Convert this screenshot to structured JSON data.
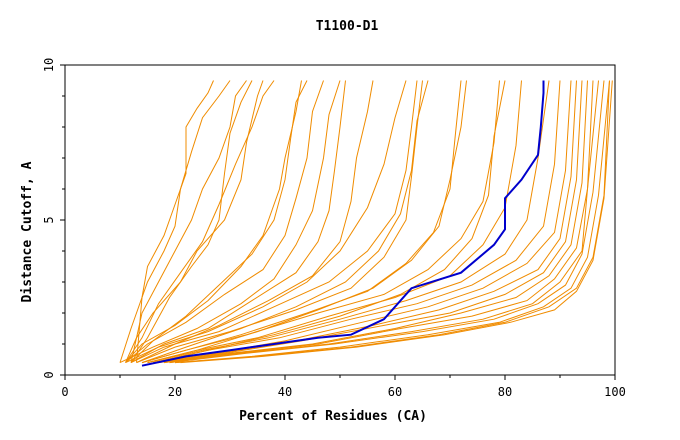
{
  "chart_data": {
    "type": "line",
    "title": "T1100-D1",
    "xlabel": "Percent of Residues (CA)",
    "ylabel": "Distance Cutoff, A",
    "xlim": [
      0,
      100
    ],
    "ylim": [
      0,
      10
    ],
    "xticks": [
      0,
      20,
      40,
      60,
      80,
      100
    ],
    "yticks": [
      0,
      5,
      10
    ],
    "grid": false,
    "colors": {
      "models": "#f08c00",
      "highlight": "#0000cc"
    },
    "highlight_series": {
      "x": [
        14,
        22,
        30,
        38,
        46,
        52,
        58,
        63,
        72,
        78,
        80,
        80,
        83,
        86,
        86.5,
        87,
        87
      ],
      "y": [
        0.3,
        0.6,
        0.8,
        1.0,
        1.2,
        1.3,
        1.8,
        2.8,
        3.3,
        4.2,
        4.7,
        5.7,
        6.3,
        7.1,
        8.0,
        9.1,
        9.5
      ]
    },
    "model_series": [
      {
        "x": [
          13,
          14,
          15,
          18,
          20,
          22,
          22,
          24,
          26,
          27
        ],
        "y": [
          0.4,
          2.5,
          3.5,
          4.5,
          5.5,
          6.5,
          8.0,
          8.6,
          9.1,
          9.5
        ]
      },
      {
        "x": [
          12,
          14,
          17,
          20,
          23,
          25,
          28,
          30,
          31,
          33
        ],
        "y": [
          0.4,
          2.0,
          3.0,
          4.0,
          5.0,
          6.0,
          7.0,
          8.0,
          9.0,
          9.5
        ]
      },
      {
        "x": [
          11,
          13,
          16,
          21,
          24,
          29,
          32,
          33,
          35,
          36
        ],
        "y": [
          0.4,
          1.2,
          2.0,
          3.0,
          4.0,
          5.0,
          6.3,
          7.5,
          9.0,
          9.5
        ]
      },
      {
        "x": [
          12,
          15,
          19,
          23,
          26,
          28,
          29,
          30,
          32,
          34
        ],
        "y": [
          0.4,
          1.2,
          2.5,
          3.5,
          4.2,
          5.0,
          6.5,
          7.8,
          8.8,
          9.5
        ]
      },
      {
        "x": [
          11,
          14,
          20,
          26,
          32,
          36,
          39,
          40,
          42,
          43
        ],
        "y": [
          0.4,
          1.0,
          1.6,
          2.4,
          3.5,
          4.5,
          6.0,
          7.0,
          8.5,
          9.5
        ]
      },
      {
        "x": [
          11,
          15,
          22,
          29,
          36,
          40,
          42,
          44,
          45,
          47
        ],
        "y": [
          0.4,
          1.0,
          1.7,
          2.6,
          3.4,
          4.5,
          5.7,
          7.0,
          8.5,
          9.5
        ]
      },
      {
        "x": [
          10,
          16,
          24,
          32,
          38,
          42,
          45,
          47,
          48,
          50
        ],
        "y": [
          0.4,
          0.9,
          1.5,
          2.3,
          3.1,
          4.2,
          5.3,
          7.0,
          8.4,
          9.5
        ]
      },
      {
        "x": [
          12,
          18,
          26,
          34,
          42,
          46,
          48,
          49,
          50,
          51
        ],
        "y": [
          0.4,
          1.0,
          1.5,
          2.4,
          3.3,
          4.3,
          5.3,
          6.6,
          8.0,
          9.5
        ]
      },
      {
        "x": [
          11,
          17,
          26,
          36,
          44,
          50,
          55,
          58,
          60,
          62
        ],
        "y": [
          0.4,
          0.9,
          1.4,
          2.2,
          3.0,
          4.0,
          5.4,
          6.8,
          8.3,
          9.5
        ]
      },
      {
        "x": [
          12,
          18,
          28,
          38,
          48,
          55,
          60,
          62,
          63,
          64
        ],
        "y": [
          0.4,
          0.9,
          1.4,
          2.2,
          3.0,
          4.0,
          5.2,
          6.6,
          8.0,
          9.5
        ]
      },
      {
        "x": [
          13,
          20,
          30,
          42,
          52,
          58,
          62,
          63,
          64,
          65
        ],
        "y": [
          0.4,
          0.9,
          1.4,
          2.1,
          2.8,
          3.8,
          5.0,
          6.4,
          8.0,
          9.5
        ]
      },
      {
        "x": [
          14,
          22,
          32,
          44,
          55,
          62,
          67,
          70,
          71,
          72
        ],
        "y": [
          0.4,
          0.8,
          1.3,
          2.0,
          2.7,
          3.6,
          4.6,
          6.0,
          7.8,
          9.5
        ]
      },
      {
        "x": [
          14,
          22,
          33,
          46,
          58,
          66,
          72,
          76,
          78,
          79
        ],
        "y": [
          0.4,
          0.8,
          1.3,
          2.0,
          2.6,
          3.4,
          4.4,
          5.6,
          7.5,
          9.5
        ]
      },
      {
        "x": [
          15,
          24,
          35,
          48,
          60,
          70,
          76,
          80,
          82,
          83
        ],
        "y": [
          0.4,
          0.8,
          1.2,
          1.9,
          2.5,
          3.2,
          4.2,
          5.4,
          7.4,
          9.5
        ]
      },
      {
        "x": [
          15,
          25,
          37,
          50,
          62,
          72,
          80,
          84,
          86,
          88
        ],
        "y": [
          0.4,
          0.8,
          1.2,
          1.8,
          2.4,
          3.0,
          3.9,
          5.0,
          7.0,
          9.5
        ]
      },
      {
        "x": [
          16,
          26,
          39,
          52,
          64,
          74,
          82,
          87,
          89,
          90
        ],
        "y": [
          0.4,
          0.8,
          1.2,
          1.8,
          2.3,
          2.9,
          3.7,
          4.8,
          6.8,
          9.5
        ]
      },
      {
        "x": [
          16,
          27,
          40,
          54,
          66,
          76,
          84,
          89,
          91,
          92
        ],
        "y": [
          0.4,
          0.7,
          1.1,
          1.7,
          2.2,
          2.8,
          3.6,
          4.6,
          6.6,
          9.5
        ]
      },
      {
        "x": [
          17,
          28,
          42,
          56,
          68,
          78,
          86,
          90,
          92,
          93
        ],
        "y": [
          0.4,
          0.7,
          1.1,
          1.6,
          2.1,
          2.7,
          3.4,
          4.4,
          6.4,
          9.5
        ]
      },
      {
        "x": [
          17,
          29,
          43,
          58,
          70,
          80,
          87,
          91,
          93,
          94
        ],
        "y": [
          0.4,
          0.7,
          1.1,
          1.6,
          2.0,
          2.6,
          3.3,
          4.3,
          6.3,
          9.5
        ]
      },
      {
        "x": [
          18,
          30,
          45,
          60,
          72,
          82,
          88,
          92,
          94,
          95
        ],
        "y": [
          0.4,
          0.7,
          1.0,
          1.5,
          2.0,
          2.5,
          3.2,
          4.2,
          6.2,
          9.5
        ]
      },
      {
        "x": [
          18,
          31,
          46,
          61,
          74,
          84,
          89,
          93,
          95,
          96
        ],
        "y": [
          0.4,
          0.7,
          1.0,
          1.5,
          1.9,
          2.4,
          3.1,
          4.1,
          6.0,
          9.5
        ]
      },
      {
        "x": [
          19,
          32,
          48,
          63,
          76,
          85,
          90,
          94,
          95,
          97
        ],
        "y": [
          0.4,
          0.7,
          1.0,
          1.4,
          1.8,
          2.3,
          3.0,
          4.0,
          6.0,
          9.5
        ]
      },
      {
        "x": [
          19,
          33,
          49,
          65,
          78,
          86,
          91,
          94,
          96,
          98
        ],
        "y": [
          0.4,
          0.7,
          1.0,
          1.4,
          1.8,
          2.3,
          2.9,
          3.9,
          5.9,
          9.5
        ]
      },
      {
        "x": [
          20,
          34,
          50,
          66,
          79,
          87,
          92,
          95,
          97,
          99
        ],
        "y": [
          0.4,
          0.6,
          0.9,
          1.3,
          1.7,
          2.2,
          2.8,
          3.8,
          5.8,
          9.5
        ]
      },
      {
        "x": [
          20,
          35,
          52,
          68,
          80,
          88,
          93,
          96,
          98,
          99
        ],
        "y": [
          0.4,
          0.6,
          0.9,
          1.3,
          1.7,
          2.2,
          2.8,
          3.8,
          5.8,
          9.5
        ]
      },
      {
        "x": [
          21,
          36,
          53,
          69,
          81,
          89,
          93,
          96,
          98,
          99.5
        ],
        "y": [
          0.4,
          0.6,
          0.9,
          1.3,
          1.7,
          2.1,
          2.7,
          3.7,
          5.7,
          9.5
        ]
      },
      {
        "x": [
          10,
          12,
          15,
          18,
          20,
          21,
          23,
          25,
          28,
          30
        ],
        "y": [
          0.4,
          1.5,
          3.0,
          4.0,
          4.8,
          6.0,
          7.2,
          8.3,
          9.0,
          9.5
        ]
      },
      {
        "x": [
          11,
          14,
          17,
          21,
          25,
          28,
          31,
          34,
          36,
          38
        ],
        "y": [
          0.4,
          1.2,
          2.3,
          3.3,
          4.3,
          5.5,
          6.8,
          8.0,
          9.0,
          9.5
        ]
      },
      {
        "x": [
          12,
          16,
          22,
          28,
          34,
          38,
          40,
          41,
          42,
          44
        ],
        "y": [
          0.4,
          1.1,
          1.9,
          2.9,
          3.9,
          5.0,
          6.3,
          7.6,
          8.8,
          9.5
        ]
      },
      {
        "x": [
          13,
          20,
          28,
          37,
          45,
          50,
          52,
          53,
          55,
          56
        ],
        "y": [
          0.4,
          1.0,
          1.6,
          2.4,
          3.2,
          4.3,
          5.6,
          7.0,
          8.5,
          9.5
        ]
      },
      {
        "x": [
          14,
          22,
          32,
          42,
          51,
          57,
          61,
          63,
          64,
          66
        ],
        "y": [
          0.4,
          0.9,
          1.5,
          2.2,
          3.0,
          4.0,
          5.2,
          6.6,
          8.2,
          9.5
        ]
      },
      {
        "x": [
          15,
          24,
          35,
          46,
          56,
          63,
          68,
          70,
          72,
          73
        ],
        "y": [
          0.4,
          0.8,
          1.4,
          2.1,
          2.8,
          3.7,
          4.8,
          6.3,
          8.0,
          9.5
        ]
      },
      {
        "x": [
          16,
          26,
          38,
          50,
          61,
          69,
          74,
          77,
          78,
          80
        ],
        "y": [
          0.4,
          0.8,
          1.3,
          1.9,
          2.6,
          3.4,
          4.4,
          5.8,
          7.7,
          9.5
        ]
      }
    ]
  }
}
